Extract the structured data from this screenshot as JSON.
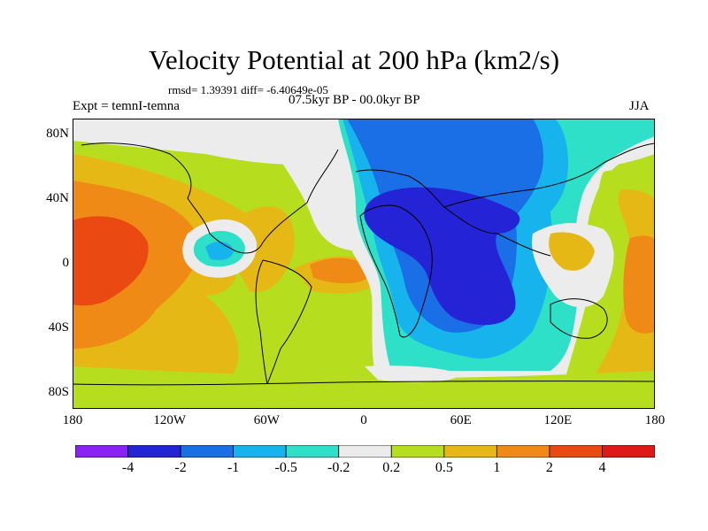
{
  "title": "Velocity Potential at 200 hPa (km2/s)",
  "stats": "rmsd= 1.39391 diff= -6.40649e-05",
  "left_label": "Expt = temnI-temna",
  "center_label": "07.5kyr BP - 00.0kyr BP",
  "right_label": "JJA",
  "lat_labels": [
    {
      "text": "80N",
      "lat": 80
    },
    {
      "text": "40N",
      "lat": 40
    },
    {
      "text": "0",
      "lat": 0
    },
    {
      "text": "40S",
      "lat": -40
    },
    {
      "text": "80S",
      "lat": -80
    }
  ],
  "lon_labels": [
    {
      "text": "180",
      "lon": -180
    },
    {
      "text": "120W",
      "lon": -120
    },
    {
      "text": "60W",
      "lon": -60
    },
    {
      "text": "0",
      "lon": 0
    },
    {
      "text": "60E",
      "lon": 60
    },
    {
      "text": "120E",
      "lon": 120
    },
    {
      "text": "180",
      "lon": 180
    }
  ],
  "colorbar": {
    "colors": [
      "#8a21f5",
      "#2424d6",
      "#1a6ee6",
      "#17b3ec",
      "#2fe0c8",
      "#ececec",
      "#b6de1e",
      "#e6b816",
      "#ef8a16",
      "#ea4a12",
      "#e01818"
    ],
    "labels": [
      "-4",
      "-2",
      "-1",
      "-0.5",
      "-0.2",
      "0.2",
      "0.5",
      "1",
      "2",
      "4"
    ]
  }
}
